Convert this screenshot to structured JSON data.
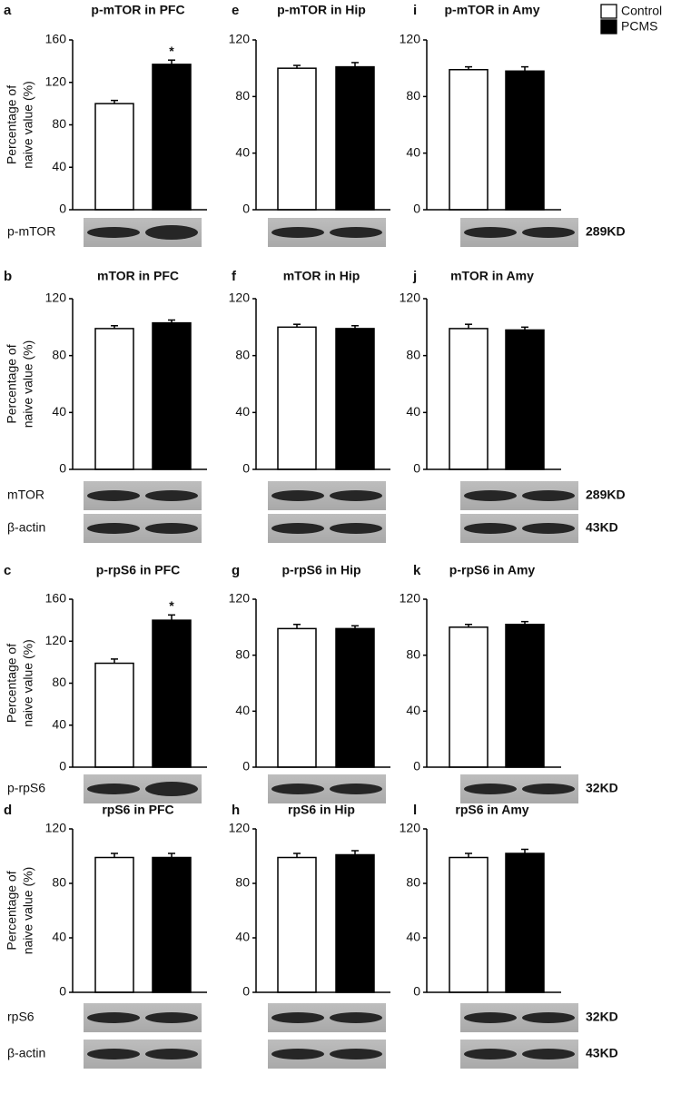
{
  "legend": [
    {
      "name": "Control",
      "color": "#ffffff"
    },
    {
      "name": "PCMS",
      "color": "#000000"
    }
  ],
  "blot_rows": [
    {
      "left": [
        "p-mTOR"
      ],
      "right": [
        "289KD"
      ]
    },
    {
      "left": [
        "mTOR",
        "β-actin"
      ],
      "right": [
        "289KD",
        "43KD"
      ]
    },
    {
      "left": [
        "p-rpS6"
      ],
      "right": [
        "32KD"
      ]
    },
    {
      "left": [
        "rpS6",
        "β-actin"
      ],
      "right": [
        "32KD",
        "43KD"
      ]
    }
  ],
  "chart_data": [
    {
      "type": "bar",
      "panel": "a",
      "title": "p-mTOR in PFC",
      "ylabel": [
        "Percentage of",
        "naive value (%)"
      ],
      "values": [
        100,
        137
      ],
      "errors": [
        3,
        4
      ],
      "annotations": [
        null,
        "*"
      ],
      "ylim": [
        0,
        160
      ],
      "yticks": [
        0,
        40,
        80,
        120,
        160
      ]
    },
    {
      "type": "bar",
      "panel": "e",
      "title": "p-mTOR in Hip",
      "values": [
        100,
        101
      ],
      "errors": [
        2,
        3
      ],
      "ylim": [
        0,
        120
      ],
      "yticks": [
        0,
        40,
        80,
        120
      ]
    },
    {
      "type": "bar",
      "panel": "i",
      "title": "p-mTOR in Amy",
      "values": [
        99,
        98
      ],
      "errors": [
        2,
        3
      ],
      "ylim": [
        0,
        120
      ],
      "yticks": [
        0,
        40,
        80,
        120
      ]
    },
    {
      "type": "bar",
      "panel": "b",
      "title": "mTOR in PFC",
      "ylabel": [
        "Percentage of",
        "naive value (%)"
      ],
      "values": [
        99,
        103
      ],
      "errors": [
        2,
        2
      ],
      "ylim": [
        0,
        120
      ],
      "yticks": [
        0,
        40,
        80,
        120
      ]
    },
    {
      "type": "bar",
      "panel": "f",
      "title": "mTOR in Hip",
      "values": [
        100,
        99
      ],
      "errors": [
        2,
        2
      ],
      "ylim": [
        0,
        120
      ],
      "yticks": [
        0,
        40,
        80,
        120
      ]
    },
    {
      "type": "bar",
      "panel": "j",
      "title": "mTOR in Amy",
      "values": [
        99,
        98
      ],
      "errors": [
        3,
        2
      ],
      "ylim": [
        0,
        120
      ],
      "yticks": [
        0,
        40,
        80,
        120
      ]
    },
    {
      "type": "bar",
      "panel": "c",
      "title": "p-rpS6 in PFC",
      "ylabel": [
        "Percentage of",
        "naive value (%)"
      ],
      "values": [
        99,
        140
      ],
      "errors": [
        4,
        5
      ],
      "annotations": [
        null,
        "*"
      ],
      "ylim": [
        0,
        160
      ],
      "yticks": [
        0,
        40,
        80,
        120,
        160
      ]
    },
    {
      "type": "bar",
      "panel": "g",
      "title": "p-rpS6 in Hip",
      "values": [
        99,
        99
      ],
      "errors": [
        3,
        2
      ],
      "ylim": [
        0,
        120
      ],
      "yticks": [
        0,
        40,
        80,
        120
      ]
    },
    {
      "type": "bar",
      "panel": "k",
      "title": "p-rpS6 in Amy",
      "values": [
        100,
        102
      ],
      "errors": [
        2,
        2
      ],
      "ylim": [
        0,
        120
      ],
      "yticks": [
        0,
        40,
        80,
        120
      ]
    },
    {
      "type": "bar",
      "panel": "d",
      "title": "rpS6 in PFC",
      "ylabel": [
        "Percentage of",
        "naive value (%)"
      ],
      "values": [
        99,
        99
      ],
      "errors": [
        3,
        3
      ],
      "ylim": [
        0,
        120
      ],
      "yticks": [
        0,
        40,
        80,
        120
      ]
    },
    {
      "type": "bar",
      "panel": "h",
      "title": "rpS6 in Hip",
      "values": [
        99,
        101
      ],
      "errors": [
        3,
        3
      ],
      "ylim": [
        0,
        120
      ],
      "yticks": [
        0,
        40,
        80,
        120
      ]
    },
    {
      "type": "bar",
      "panel": "l",
      "title": "rpS6 in Amy",
      "values": [
        99,
        102
      ],
      "errors": [
        3,
        3
      ],
      "ylim": [
        0,
        120
      ],
      "yticks": [
        0,
        40,
        80,
        120
      ]
    }
  ]
}
